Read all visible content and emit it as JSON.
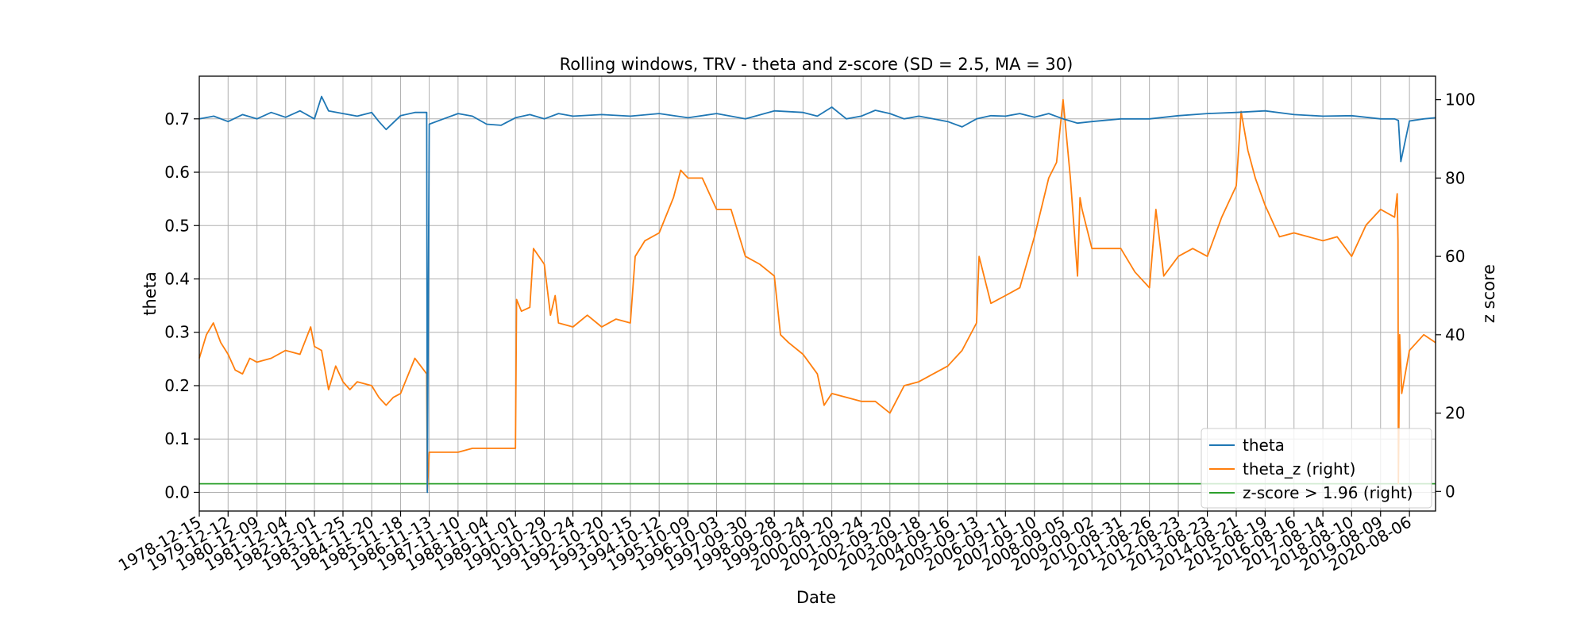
{
  "chart_data": {
    "type": "line",
    "title": "Rolling windows, TRV - theta and z-score (SD = 2.5, MA = 30)",
    "xlabel": "Date",
    "ylabel": "theta",
    "ylabel_right": "z score",
    "x_range": [
      "1978-12-15",
      "2021-06-30"
    ],
    "ylim": [
      -0.035,
      0.78
    ],
    "ylim_right": [
      -5,
      106
    ],
    "yticks": [
      0.0,
      0.1,
      0.2,
      0.3,
      0.4,
      0.5,
      0.6,
      0.7
    ],
    "yticks_right": [
      0,
      20,
      40,
      60,
      80,
      100
    ],
    "xtick_labels": [
      "1978-12-15",
      "1979-12-12",
      "1980-12-09",
      "1981-12-04",
      "1982-12-01",
      "1983-11-25",
      "1984-11-20",
      "1985-11-18",
      "1986-11-13",
      "1987-11-10",
      "1988-11-04",
      "1989-11-01",
      "1990-10-29",
      "1991-10-24",
      "1992-10-20",
      "1993-10-15",
      "1994-10-12",
      "1995-10-09",
      "1996-10-03",
      "1997-09-30",
      "1998-09-28",
      "1999-09-24",
      "2000-09-20",
      "2001-09-24",
      "2002-09-20",
      "2003-09-18",
      "2004-09-16",
      "2005-09-13",
      "2006-09-11",
      "2007-09-10",
      "2008-09-05",
      "2009-09-02",
      "2010-08-31",
      "2011-08-26",
      "2012-08-23",
      "2013-08-23",
      "2014-08-21",
      "2015-08-19",
      "2016-08-16",
      "2017-08-14",
      "2018-08-10",
      "2019-08-09",
      "2020-08-06"
    ],
    "grid": true,
    "legend_position": "lower-right",
    "series": [
      {
        "name": "theta",
        "axis": "left",
        "color": "#1f77b4",
        "x": [
          "1978-12-15",
          "1979-06-15",
          "1979-12-12",
          "1980-06-10",
          "1980-12-09",
          "1981-06-05",
          "1981-12-04",
          "1982-06-02",
          "1982-12-01",
          "1983-03-01",
          "1983-05-28",
          "1983-11-25",
          "1984-05-22",
          "1984-11-20",
          "1985-02-18",
          "1985-05-20",
          "1985-11-18",
          "1986-05-16",
          "1986-10-12",
          "1986-10-20",
          "1986-11-13",
          "1987-05-12",
          "1987-11-10",
          "1988-05-08",
          "1988-11-04",
          "1989-05-03",
          "1989-11-01",
          "1990-04-30",
          "1990-10-29",
          "1991-04-26",
          "1991-10-24",
          "1992-10-20",
          "1993-10-15",
          "1994-10-12",
          "1995-10-09",
          "1996-10-03",
          "1997-09-30",
          "1998-09-28",
          "1999-09-24",
          "2000-03-22",
          "2000-09-20",
          "2001-03-22",
          "2001-09-24",
          "2002-03-21",
          "2002-09-20",
          "2003-03-19",
          "2003-09-18",
          "2004-03-17",
          "2004-09-16",
          "2005-03-15",
          "2005-09-13",
          "2006-03-13",
          "2006-09-11",
          "2007-03-11",
          "2007-09-10",
          "2008-03-08",
          "2008-09-05",
          "2009-03-05",
          "2009-09-02",
          "2010-08-31",
          "2011-08-26",
          "2012-08-23",
          "2013-08-23",
          "2014-08-21",
          "2015-08-19",
          "2016-08-16",
          "2017-08-14",
          "2018-08-10",
          "2019-08-09",
          "2020-02-01",
          "2020-03-20",
          "2020-04-20",
          "2020-08-06",
          "2021-02-01",
          "2021-06-30"
        ],
        "values": [
          0.7,
          0.705,
          0.695,
          0.708,
          0.7,
          0.712,
          0.703,
          0.715,
          0.7,
          0.742,
          0.715,
          0.71,
          0.705,
          0.712,
          0.695,
          0.68,
          0.706,
          0.712,
          0.712,
          0.0,
          0.69,
          0.7,
          0.71,
          0.705,
          0.69,
          0.688,
          0.702,
          0.708,
          0.7,
          0.71,
          0.705,
          0.708,
          0.705,
          0.71,
          0.702,
          0.71,
          0.7,
          0.715,
          0.712,
          0.705,
          0.722,
          0.7,
          0.705,
          0.716,
          0.71,
          0.7,
          0.705,
          0.7,
          0.695,
          0.685,
          0.7,
          0.706,
          0.705,
          0.71,
          0.703,
          0.71,
          0.7,
          0.692,
          0.695,
          0.7,
          0.7,
          0.706,
          0.71,
          0.712,
          0.715,
          0.708,
          0.705,
          0.706,
          0.7,
          0.7,
          0.697,
          0.62,
          0.696,
          0.7,
          0.702
        ]
      },
      {
        "name": "theta_z (right)",
        "axis": "right",
        "color": "#ff7f0e",
        "x": [
          "1978-12-15",
          "1979-03-15",
          "1979-06-10",
          "1979-09-10",
          "1979-12-12",
          "1980-03-10",
          "1980-06-10",
          "1980-09-10",
          "1980-12-09",
          "1981-06-05",
          "1981-12-04",
          "1982-06-02",
          "1982-10-15",
          "1982-12-01",
          "1983-03-01",
          "1983-05-28",
          "1983-08-25",
          "1983-11-25",
          "1984-02-20",
          "1984-05-22",
          "1984-11-20",
          "1985-02-18",
          "1985-05-20",
          "1985-08-18",
          "1985-11-18",
          "1986-05-16",
          "1986-10-12",
          "1986-10-20",
          "1986-11-13",
          "1987-05-12",
          "1987-11-10",
          "1988-05-08",
          "1988-11-04",
          "1989-05-03",
          "1989-11-01",
          "1989-11-15",
          "1990-01-15",
          "1990-04-30",
          "1990-06-15",
          "1990-10-29",
          "1991-01-15",
          "1991-03-15",
          "1991-04-26",
          "1991-10-24",
          "1992-04-22",
          "1992-10-20",
          "1993-04-18",
          "1993-10-15",
          "1993-12-15",
          "1994-04-15",
          "1994-10-12",
          "1995-04-10",
          "1995-07-10",
          "1995-10-09",
          "1996-04-06",
          "1996-10-03",
          "1997-04-02",
          "1997-09-30",
          "1998-03-29",
          "1998-09-28",
          "1998-12-15",
          "1999-03-26",
          "1999-09-24",
          "2000-03-22",
          "2000-06-15",
          "2000-09-20",
          "2001-03-22",
          "2001-09-24",
          "2002-03-21",
          "2002-09-20",
          "2003-03-19",
          "2003-09-18",
          "2004-03-17",
          "2004-09-16",
          "2005-03-15",
          "2005-09-13",
          "2005-10-15",
          "2006-03-13",
          "2006-09-11",
          "2007-03-11",
          "2007-09-10",
          "2008-03-08",
          "2008-06-15",
          "2008-09-05",
          "2008-12-05",
          "2009-03-05",
          "2009-04-05",
          "2009-05-01",
          "2009-09-02",
          "2010-02-28",
          "2010-08-31",
          "2011-02-25",
          "2011-08-26",
          "2011-11-15",
          "2012-02-22",
          "2012-08-23",
          "2013-02-20",
          "2013-08-23",
          "2014-02-20",
          "2014-08-21",
          "2014-10-21",
          "2015-01-15",
          "2015-04-18",
          "2015-08-19",
          "2016-02-15",
          "2016-08-16",
          "2017-02-13",
          "2017-08-14",
          "2018-02-10",
          "2018-08-10",
          "2019-02-08",
          "2019-08-09",
          "2020-02-01",
          "2020-03-05",
          "2020-03-15",
          "2020-03-20",
          "2020-04-05",
          "2020-05-01",
          "2020-08-06",
          "2021-02-01",
          "2021-06-30"
        ],
        "values": [
          34,
          40,
          43,
          38,
          35,
          31,
          30,
          34,
          33,
          34,
          36,
          35,
          42,
          37,
          36,
          26,
          32,
          28,
          26,
          28,
          27,
          24,
          22,
          24,
          25,
          34,
          30,
          0,
          10,
          10,
          10,
          11,
          11,
          11,
          11,
          49,
          46,
          47,
          62,
          58,
          45,
          50,
          43,
          42,
          45,
          42,
          44,
          43,
          60,
          64,
          66,
          75,
          82,
          80,
          80,
          72,
          72,
          60,
          58,
          55,
          40,
          38,
          35,
          30,
          22,
          25,
          24,
          23,
          23,
          20,
          27,
          28,
          30,
          32,
          36,
          43,
          60,
          48,
          50,
          52,
          65,
          80,
          84,
          100,
          80,
          55,
          75,
          72,
          62,
          62,
          62,
          56,
          52,
          72,
          55,
          60,
          62,
          60,
          70,
          78,
          97,
          87,
          80,
          73,
          65,
          66,
          65,
          64,
          65,
          60,
          68,
          72,
          70,
          76,
          64,
          2,
          40,
          25,
          36,
          40,
          38
        ]
      },
      {
        "name": "z-score > 1.96 (right)",
        "axis": "right",
        "color": "#2ca02c",
        "x": [
          "1978-12-15",
          "2021-06-30"
        ],
        "values": [
          1.96,
          1.96
        ]
      }
    ]
  }
}
